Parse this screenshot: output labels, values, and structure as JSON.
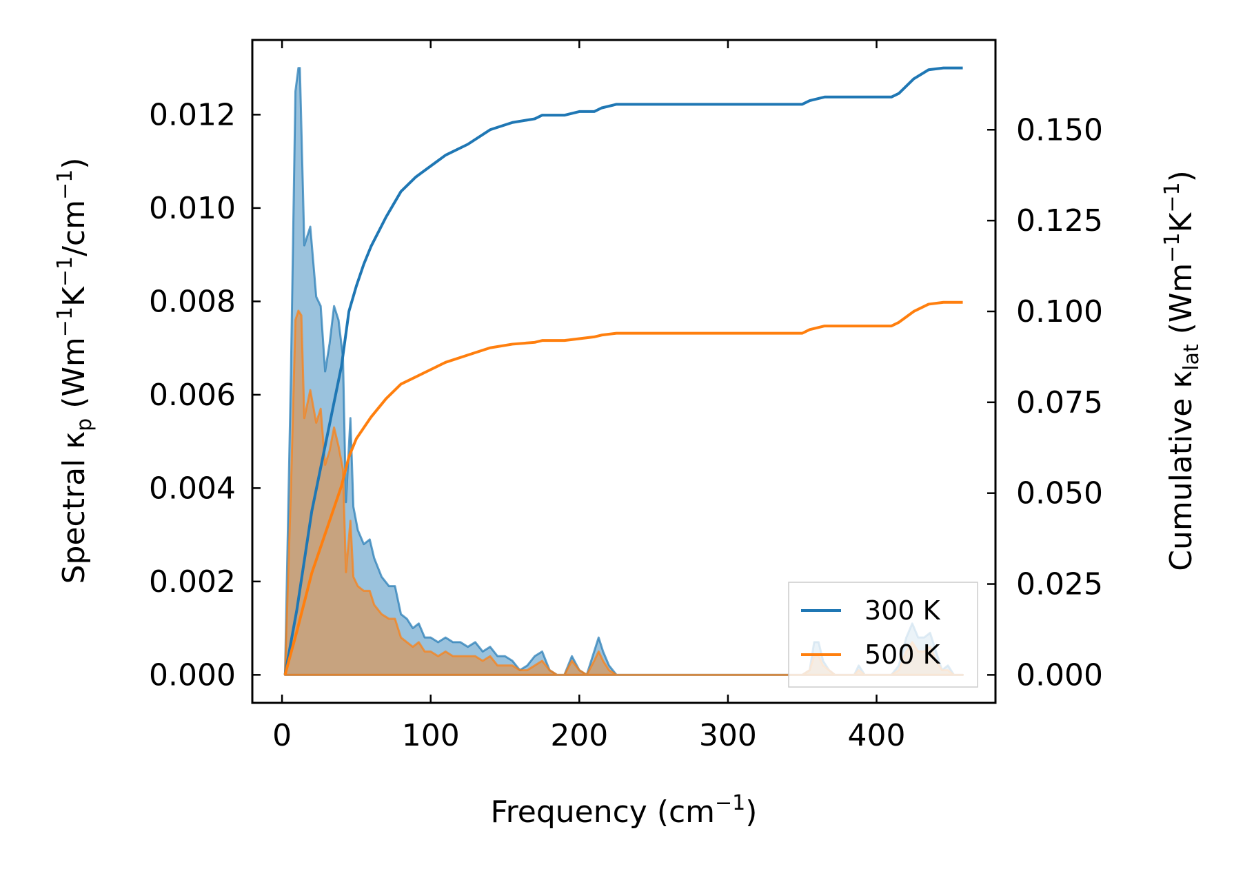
{
  "chart_data": {
    "type": "line",
    "x_axis": {
      "label": "Frequency (cm",
      "label_sup": "−1",
      "label_close": ")",
      "range": [
        -20,
        480
      ],
      "ticks": [
        0,
        100,
        200,
        300,
        400
      ]
    },
    "y_left": {
      "label": "Spectral κ",
      "label_sub": "p",
      "label_unit": " (Wm",
      "label_sup1": "−1",
      "label_mid": "K",
      "label_sup2": "−1",
      "label_mid2": "/cm",
      "label_sup3": "−1",
      "label_close": ")",
      "range": [
        -0.0006,
        0.0136
      ],
      "ticks": [
        0.0,
        0.002,
        0.004,
        0.006,
        0.008,
        0.01,
        0.012
      ],
      "tick_labels": [
        "0.000",
        "0.002",
        "0.004",
        "0.006",
        "0.008",
        "0.010",
        "0.012"
      ]
    },
    "y_right": {
      "label": "Cumulative κ",
      "label_sub": "lat",
      "label_unit": " (Wm",
      "label_sup1": "−1",
      "label_mid": "K",
      "label_sup2": "−1",
      "label_close": ")",
      "range": [
        -0.0077,
        0.1747
      ],
      "ticks": [
        0.0,
        0.025,
        0.05,
        0.075,
        0.1,
        0.125,
        0.15
      ],
      "tick_labels": [
        "0.000",
        "0.025",
        "0.050",
        "0.075",
        "0.100",
        "0.125",
        "0.150"
      ]
    },
    "legend": {
      "position": "bottom-right"
    },
    "grid": false,
    "series": [
      {
        "name": "300 K",
        "color": "#1f77b4",
        "spectral": [
          [
            2,
            0.0
          ],
          [
            6,
            0.0065
          ],
          [
            9,
            0.0125
          ],
          [
            11,
            0.013
          ],
          [
            12,
            0.013
          ],
          [
            15,
            0.0092
          ],
          [
            19,
            0.0096
          ],
          [
            23,
            0.0081
          ],
          [
            26,
            0.0079
          ],
          [
            29,
            0.0065
          ],
          [
            32,
            0.0071
          ],
          [
            35,
            0.0079
          ],
          [
            38,
            0.0076
          ],
          [
            41,
            0.0068
          ],
          [
            43,
            0.0037
          ],
          [
            46,
            0.0055
          ],
          [
            48,
            0.0036
          ],
          [
            51,
            0.0031
          ],
          [
            55,
            0.0028
          ],
          [
            59,
            0.0029
          ],
          [
            62,
            0.0025
          ],
          [
            67,
            0.0021
          ],
          [
            72,
            0.0019
          ],
          [
            76,
            0.0019
          ],
          [
            80,
            0.0013
          ],
          [
            84,
            0.0012
          ],
          [
            88,
            0.001
          ],
          [
            92,
            0.0011
          ],
          [
            96,
            0.0008
          ],
          [
            100,
            0.0008
          ],
          [
            105,
            0.0007
          ],
          [
            110,
            0.0008
          ],
          [
            115,
            0.0007
          ],
          [
            120,
            0.0007
          ],
          [
            125,
            0.0006
          ],
          [
            130,
            0.0007
          ],
          [
            135,
            0.0005
          ],
          [
            140,
            0.0006
          ],
          [
            145,
            0.0004
          ],
          [
            150,
            0.0004
          ],
          [
            155,
            0.0003
          ],
          [
            160,
            0.0001
          ],
          [
            165,
            0.0002
          ],
          [
            170,
            0.0004
          ],
          [
            175,
            0.0005
          ],
          [
            180,
            0.0001
          ],
          [
            185,
            0.0
          ],
          [
            190,
            0.0
          ],
          [
            195,
            0.0004
          ],
          [
            200,
            0.0001
          ],
          [
            205,
            0.0
          ],
          [
            210,
            0.0005
          ],
          [
            213,
            0.0008
          ],
          [
            216,
            0.0005
          ],
          [
            220,
            0.0002
          ],
          [
            225,
            0.0
          ],
          [
            350,
            0.0
          ],
          [
            355,
            0.0001
          ],
          [
            358,
            0.0007
          ],
          [
            361,
            0.0007
          ],
          [
            364,
            0.0003
          ],
          [
            368,
            0.0001
          ],
          [
            372,
            0.0
          ],
          [
            385,
            0.0
          ],
          [
            388,
            0.0002
          ],
          [
            392,
            0.0
          ],
          [
            410,
            0.0
          ],
          [
            415,
            0.0002
          ],
          [
            420,
            0.0008
          ],
          [
            424,
            0.0011
          ],
          [
            428,
            0.0008
          ],
          [
            432,
            0.0008
          ],
          [
            436,
            0.0009
          ],
          [
            440,
            0.0005
          ],
          [
            444,
            0.0001
          ],
          [
            448,
            0.0002
          ],
          [
            452,
            0.0
          ],
          [
            458,
            0.0
          ]
        ],
        "cumulative": [
          [
            2,
            0.0
          ],
          [
            10,
            0.018
          ],
          [
            20,
            0.045
          ],
          [
            30,
            0.065
          ],
          [
            40,
            0.085
          ],
          [
            45,
            0.1
          ],
          [
            50,
            0.107
          ],
          [
            55,
            0.113
          ],
          [
            60,
            0.118
          ],
          [
            70,
            0.126
          ],
          [
            80,
            0.133
          ],
          [
            90,
            0.137
          ],
          [
            100,
            0.14
          ],
          [
            110,
            0.143
          ],
          [
            125,
            0.146
          ],
          [
            140,
            0.15
          ],
          [
            155,
            0.152
          ],
          [
            170,
            0.153
          ],
          [
            175,
            0.154
          ],
          [
            190,
            0.154
          ],
          [
            200,
            0.155
          ],
          [
            210,
            0.155
          ],
          [
            215,
            0.156
          ],
          [
            225,
            0.157
          ],
          [
            350,
            0.157
          ],
          [
            355,
            0.158
          ],
          [
            365,
            0.159
          ],
          [
            390,
            0.159
          ],
          [
            410,
            0.159
          ],
          [
            415,
            0.16
          ],
          [
            425,
            0.164
          ],
          [
            435,
            0.1665
          ],
          [
            445,
            0.167
          ],
          [
            458,
            0.167
          ]
        ]
      },
      {
        "name": "500 K",
        "color": "#ff7f0e",
        "spectral": [
          [
            2,
            0.0
          ],
          [
            6,
            0.004
          ],
          [
            9,
            0.0076
          ],
          [
            11,
            0.0078
          ],
          [
            13,
            0.0077
          ],
          [
            15,
            0.0055
          ],
          [
            19,
            0.0061
          ],
          [
            23,
            0.0054
          ],
          [
            26,
            0.0057
          ],
          [
            29,
            0.0045
          ],
          [
            32,
            0.0048
          ],
          [
            35,
            0.0053
          ],
          [
            38,
            0.0049
          ],
          [
            41,
            0.0044
          ],
          [
            43,
            0.0022
          ],
          [
            46,
            0.0033
          ],
          [
            48,
            0.0021
          ],
          [
            51,
            0.0019
          ],
          [
            55,
            0.0018
          ],
          [
            59,
            0.0018
          ],
          [
            62,
            0.0015
          ],
          [
            67,
            0.0013
          ],
          [
            72,
            0.0012
          ],
          [
            76,
            0.0012
          ],
          [
            80,
            0.0008
          ],
          [
            84,
            0.0007
          ],
          [
            88,
            0.0006
          ],
          [
            92,
            0.0007
          ],
          [
            96,
            0.0005
          ],
          [
            100,
            0.0005
          ],
          [
            105,
            0.0004
          ],
          [
            110,
            0.0005
          ],
          [
            115,
            0.0004
          ],
          [
            120,
            0.0004
          ],
          [
            125,
            0.0004
          ],
          [
            130,
            0.0004
          ],
          [
            135,
            0.0003
          ],
          [
            140,
            0.0004
          ],
          [
            145,
            0.0002
          ],
          [
            150,
            0.0002
          ],
          [
            155,
            0.0002
          ],
          [
            160,
            0.0001
          ],
          [
            165,
            0.0001
          ],
          [
            170,
            0.0002
          ],
          [
            175,
            0.0003
          ],
          [
            180,
            0.0001
          ],
          [
            185,
            0.0
          ],
          [
            190,
            0.0
          ],
          [
            195,
            0.0003
          ],
          [
            200,
            0.0001
          ],
          [
            205,
            0.0
          ],
          [
            210,
            0.0003
          ],
          [
            213,
            0.0005
          ],
          [
            216,
            0.0003
          ],
          [
            220,
            0.0001
          ],
          [
            225,
            0.0
          ],
          [
            350,
            0.0
          ],
          [
            355,
            0.0001
          ],
          [
            358,
            0.0004
          ],
          [
            361,
            0.0004
          ],
          [
            364,
            0.0002
          ],
          [
            368,
            0.0001
          ],
          [
            372,
            0.0
          ],
          [
            385,
            0.0
          ],
          [
            388,
            0.0001
          ],
          [
            392,
            0.0
          ],
          [
            410,
            0.0
          ],
          [
            415,
            0.0001
          ],
          [
            420,
            0.0005
          ],
          [
            424,
            0.0007
          ],
          [
            428,
            0.0005
          ],
          [
            432,
            0.0005
          ],
          [
            436,
            0.0006
          ],
          [
            440,
            0.0003
          ],
          [
            444,
            0.0001
          ],
          [
            448,
            0.0001
          ],
          [
            452,
            0.0
          ],
          [
            458,
            0.0
          ]
        ],
        "cumulative": [
          [
            2,
            0.0
          ],
          [
            10,
            0.012
          ],
          [
            20,
            0.028
          ],
          [
            30,
            0.04
          ],
          [
            40,
            0.052
          ],
          [
            45,
            0.06
          ],
          [
            50,
            0.065
          ],
          [
            55,
            0.068
          ],
          [
            60,
            0.071
          ],
          [
            70,
            0.076
          ],
          [
            80,
            0.08
          ],
          [
            90,
            0.082
          ],
          [
            100,
            0.084
          ],
          [
            110,
            0.086
          ],
          [
            125,
            0.088
          ],
          [
            140,
            0.09
          ],
          [
            155,
            0.091
          ],
          [
            170,
            0.0915
          ],
          [
            175,
            0.092
          ],
          [
            190,
            0.092
          ],
          [
            200,
            0.0925
          ],
          [
            210,
            0.093
          ],
          [
            215,
            0.0935
          ],
          [
            225,
            0.094
          ],
          [
            350,
            0.094
          ],
          [
            355,
            0.095
          ],
          [
            365,
            0.096
          ],
          [
            390,
            0.096
          ],
          [
            410,
            0.096
          ],
          [
            415,
            0.097
          ],
          [
            425,
            0.1
          ],
          [
            435,
            0.102
          ],
          [
            445,
            0.1025
          ],
          [
            458,
            0.1025
          ]
        ]
      }
    ]
  }
}
